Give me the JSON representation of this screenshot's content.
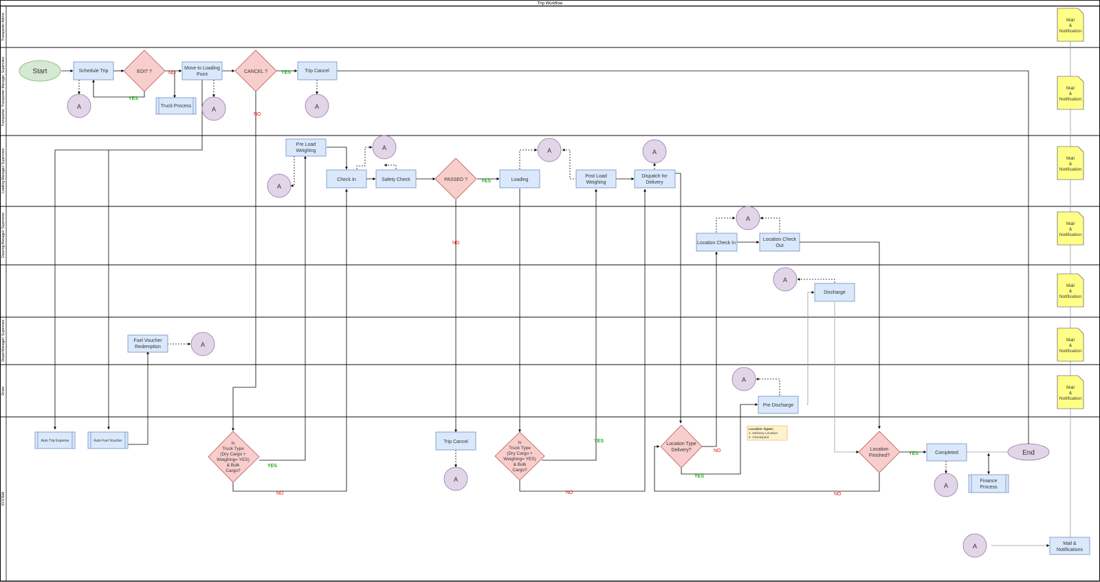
{
  "title": "Trip Workflow",
  "colors": {
    "process_fill": "#dae8fc",
    "process_stroke": "#6c8ebf",
    "decision_fill": "#f8cecc",
    "decision_stroke": "#b85450",
    "connector_fill": "#e1d5e7",
    "connector_stroke": "#9673a6",
    "start_fill": "#d5e8d4",
    "start_stroke": "#82b366",
    "note_fill": "#ffff88",
    "note_stroke": "#36393d",
    "memo_fill": "#fff2cc",
    "memo_stroke": "#d6b656",
    "yes_color": "#22aa22",
    "no_color": "#ee1111"
  },
  "lanes": [
    {
      "name": "Transporter Admin"
    },
    {
      "name": "Transporter, Transporter Manager, Supervisor"
    },
    {
      "name": "Loading Manager/ Supervisor"
    },
    {
      "name": "Clearing Manager/ Supervisor"
    },
    {
      "name": ""
    },
    {
      "name": "Depot Manager/ Supervisor"
    },
    {
      "name": "Driver"
    },
    {
      "name": "SYSTEM"
    }
  ],
  "nodes": {
    "start": "Start",
    "schedule_trip": "Schedule Trip",
    "edit": "EDIT ?",
    "truck_process": "Truck Process",
    "move_loading": [
      "Move to Loading",
      "Point"
    ],
    "cancel": "CANCEL ?",
    "trip_cancel_top": "Trip Cancel",
    "pre_load": [
      "Pre Load",
      "Weighing"
    ],
    "check_in": "Check In",
    "safety_check": "Safety Check",
    "passed": "PASSED ?",
    "loading": "Loading",
    "post_load": [
      "Post Load",
      "Weighing"
    ],
    "dispatch": [
      "Dispatch for",
      "Delivery"
    ],
    "location_check_in": "Location Check In",
    "location_check_out": [
      "Location Check",
      "Out"
    ],
    "discharge": "Discharge",
    "fuel_voucher": [
      "Fuel Voucher",
      "Redemption"
    ],
    "pre_discharge": "Pre Discharge",
    "auto_trip_expense": "Auto Trip Expense",
    "auto_fuel_voucher": "Auto Fuel Voucher",
    "truck_type_1": [
      "Is",
      "Truck Type",
      "(Dry Cargo +",
      "Weighing= YES)",
      "& Bulk",
      "Cargo?"
    ],
    "trip_cancel_sys": "Trip Cancel",
    "truck_type_2": [
      "Is",
      "Truck Type",
      "(Dry Cargo +",
      "Weighing= YES)",
      "& Bulk",
      "Cargo?"
    ],
    "location_type": [
      "Location Type",
      "Delivery?"
    ],
    "location_types_note": [
      "Location Types:",
      "1. Delivery Location",
      "2. Checkpoint"
    ],
    "location_finished": [
      "Location",
      "Finished?"
    ],
    "completed": "Completed",
    "end": "End",
    "finance_process": [
      "Finance",
      "Process"
    ],
    "mail_notifications": [
      "Mail &",
      "Notifications"
    ],
    "mail_notification": [
      "Mail",
      "&",
      "Notification"
    ],
    "connector": "A"
  },
  "edge_labels": {
    "yes": "YES",
    "no": "NO"
  }
}
